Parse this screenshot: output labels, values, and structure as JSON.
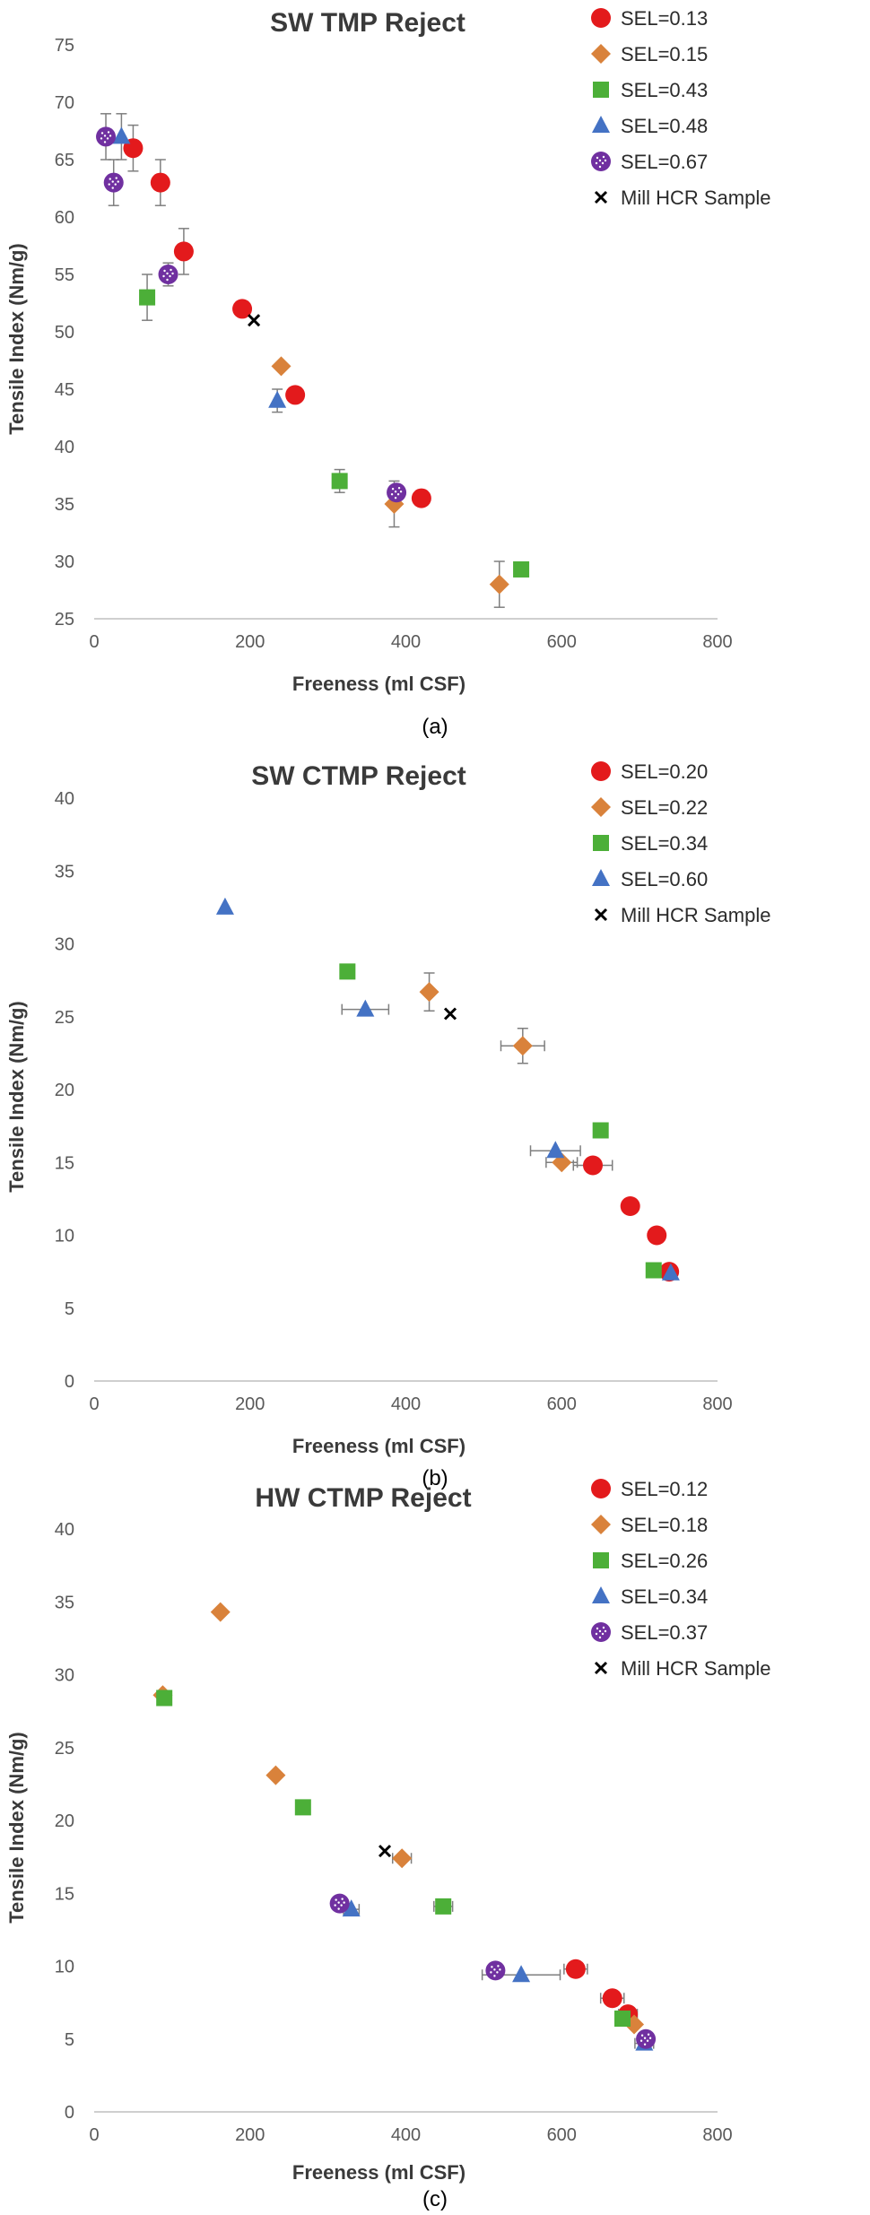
{
  "colors": {
    "SEL-red": "#e31a1c",
    "SEL-orange": "#d9823b",
    "SEL-green": "#4caf38",
    "SEL-blue": "#4472c4",
    "SEL-purple": "#7030a0",
    "mill": "#000000"
  },
  "chart_data": [
    {
      "type": "scatter",
      "title": "SW TMP Reject",
      "caption": "(a)",
      "xlabel": "Freeness (ml CSF)",
      "ylabel": "Tensile Index (Nm/g)",
      "xlim": [
        0,
        800
      ],
      "ylim": [
        25,
        75
      ],
      "xticks": [
        0,
        200,
        400,
        600,
        800
      ],
      "yticks": [
        25,
        30,
        35,
        40,
        45,
        50,
        55,
        60,
        65,
        70,
        75
      ],
      "grid": false,
      "legend_position": "top-right",
      "series": [
        {
          "name": "SEL=0.13",
          "marker": "circle",
          "color": "#e31a1c",
          "points": [
            {
              "x": 50,
              "y": 66,
              "yerr": 2
            },
            {
              "x": 85,
              "y": 63,
              "yerr": 2
            },
            {
              "x": 115,
              "y": 57,
              "yerr": 2
            },
            {
              "x": 190,
              "y": 52
            },
            {
              "x": 258,
              "y": 44.5
            },
            {
              "x": 420,
              "y": 35.5,
              "xerr": 10
            }
          ]
        },
        {
          "name": "SEL=0.15",
          "marker": "diamond",
          "color": "#d9823b",
          "points": [
            {
              "x": 240,
              "y": 47
            },
            {
              "x": 385,
              "y": 35,
              "yerr": 2
            },
            {
              "x": 520,
              "y": 28,
              "yerr": 2
            }
          ]
        },
        {
          "name": "SEL=0.43",
          "marker": "square",
          "color": "#4caf38",
          "points": [
            {
              "x": 68,
              "y": 53,
              "yerr": 2
            },
            {
              "x": 315,
              "y": 37,
              "yerr": 1
            },
            {
              "x": 548,
              "y": 29.3
            }
          ]
        },
        {
          "name": "SEL=0.48",
          "marker": "triangle",
          "color": "#4472c4",
          "points": [
            {
              "x": 35,
              "y": 67,
              "yerr": 2
            },
            {
              "x": 235,
              "y": 44,
              "yerr": 1
            }
          ]
        },
        {
          "name": "SEL=0.67",
          "marker": "circle-dotted",
          "color": "#7030a0",
          "points": [
            {
              "x": 15,
              "y": 67,
              "yerr": 2
            },
            {
              "x": 25,
              "y": 63,
              "yerr": 2
            },
            {
              "x": 95,
              "y": 55,
              "yerr": 1
            },
            {
              "x": 388,
              "y": 36
            }
          ]
        },
        {
          "name": "Mill HCR Sample",
          "marker": "x",
          "color": "#000000",
          "points": [
            {
              "x": 205,
              "y": 51
            }
          ]
        }
      ]
    },
    {
      "type": "scatter",
      "title": "SW CTMP Reject",
      "caption": "(b)",
      "xlabel": "Freeness (ml CSF)",
      "ylabel": "Tensile Index (Nm/g)",
      "xlim": [
        0,
        800
      ],
      "ylim": [
        0,
        40
      ],
      "xticks": [
        0,
        200,
        400,
        600,
        800
      ],
      "yticks": [
        0,
        5,
        10,
        15,
        20,
        25,
        30,
        35,
        40
      ],
      "grid": false,
      "legend_position": "top-right",
      "series": [
        {
          "name": "SEL=0.20",
          "marker": "circle",
          "color": "#e31a1c",
          "points": [
            {
              "x": 640,
              "y": 14.8,
              "xerr": 25
            },
            {
              "x": 688,
              "y": 12
            },
            {
              "x": 722,
              "y": 10
            },
            {
              "x": 738,
              "y": 7.5
            }
          ]
        },
        {
          "name": "SEL=0.22",
          "marker": "diamond",
          "color": "#d9823b",
          "points": [
            {
              "x": 430,
              "y": 26.7,
              "yerr": 1.3
            },
            {
              "x": 550,
              "y": 23,
              "xerr": 28,
              "yerr": 1.2
            },
            {
              "x": 600,
              "y": 15,
              "xerr": 20
            }
          ]
        },
        {
          "name": "SEL=0.34",
          "marker": "square",
          "color": "#4caf38",
          "points": [
            {
              "x": 325,
              "y": 28.1
            },
            {
              "x": 650,
              "y": 17.2
            },
            {
              "x": 718,
              "y": 7.6
            }
          ]
        },
        {
          "name": "SEL=0.60",
          "marker": "triangle",
          "color": "#4472c4",
          "points": [
            {
              "x": 168,
              "y": 32.5
            },
            {
              "x": 348,
              "y": 25.5,
              "xerr": 30
            },
            {
              "x": 592,
              "y": 15.8,
              "xerr": 32
            },
            {
              "x": 740,
              "y": 7.4
            }
          ]
        },
        {
          "name": "Mill HCR Sample",
          "marker": "x",
          "color": "#000000",
          "points": [
            {
              "x": 457,
              "y": 25.2
            }
          ]
        }
      ]
    },
    {
      "type": "scatter",
      "title": "HW CTMP Reject",
      "caption": "(c)",
      "xlabel": "Freeness (ml CSF)",
      "ylabel": "Tensile Index (Nm/g)",
      "xlim": [
        0,
        800
      ],
      "ylim": [
        0,
        40
      ],
      "xticks": [
        0,
        200,
        400,
        600,
        800
      ],
      "yticks": [
        0,
        5,
        10,
        15,
        20,
        25,
        30,
        35,
        40
      ],
      "grid": false,
      "legend_position": "top-right",
      "series": [
        {
          "name": "SEL=0.12",
          "marker": "circle",
          "color": "#e31a1c",
          "points": [
            {
              "x": 618,
              "y": 9.8,
              "xerr": 15
            },
            {
              "x": 665,
              "y": 7.8,
              "xerr": 15
            },
            {
              "x": 685,
              "y": 6.7,
              "xerr": 12
            }
          ]
        },
        {
          "name": "SEL=0.18",
          "marker": "diamond",
          "color": "#d9823b",
          "points": [
            {
              "x": 88,
              "y": 28.6
            },
            {
              "x": 162,
              "y": 34.3
            },
            {
              "x": 233,
              "y": 23.1
            },
            {
              "x": 395,
              "y": 17.4,
              "xerr": 12
            },
            {
              "x": 693,
              "y": 6
            }
          ]
        },
        {
          "name": "SEL=0.26",
          "marker": "square",
          "color": "#4caf38",
          "points": [
            {
              "x": 90,
              "y": 28.4
            },
            {
              "x": 268,
              "y": 20.9
            },
            {
              "x": 448,
              "y": 14.1,
              "xerr": 12
            },
            {
              "x": 678,
              "y": 6.4
            }
          ]
        },
        {
          "name": "SEL=0.34",
          "marker": "triangle",
          "color": "#4472c4",
          "points": [
            {
              "x": 330,
              "y": 13.9,
              "xerr": 10
            },
            {
              "x": 548,
              "y": 9.4,
              "xerr": 50
            },
            {
              "x": 706,
              "y": 4.7,
              "xerr": 12
            }
          ]
        },
        {
          "name": "SEL=0.37",
          "marker": "circle-dotted",
          "color": "#7030a0",
          "points": [
            {
              "x": 315,
              "y": 14.3
            },
            {
              "x": 515,
              "y": 9.7
            },
            {
              "x": 708,
              "y": 5,
              "xerr": 8
            }
          ]
        },
        {
          "name": "Mill HCR Sample",
          "marker": "x",
          "color": "#000000",
          "points": [
            {
              "x": 373,
              "y": 17.9
            }
          ]
        }
      ]
    }
  ]
}
